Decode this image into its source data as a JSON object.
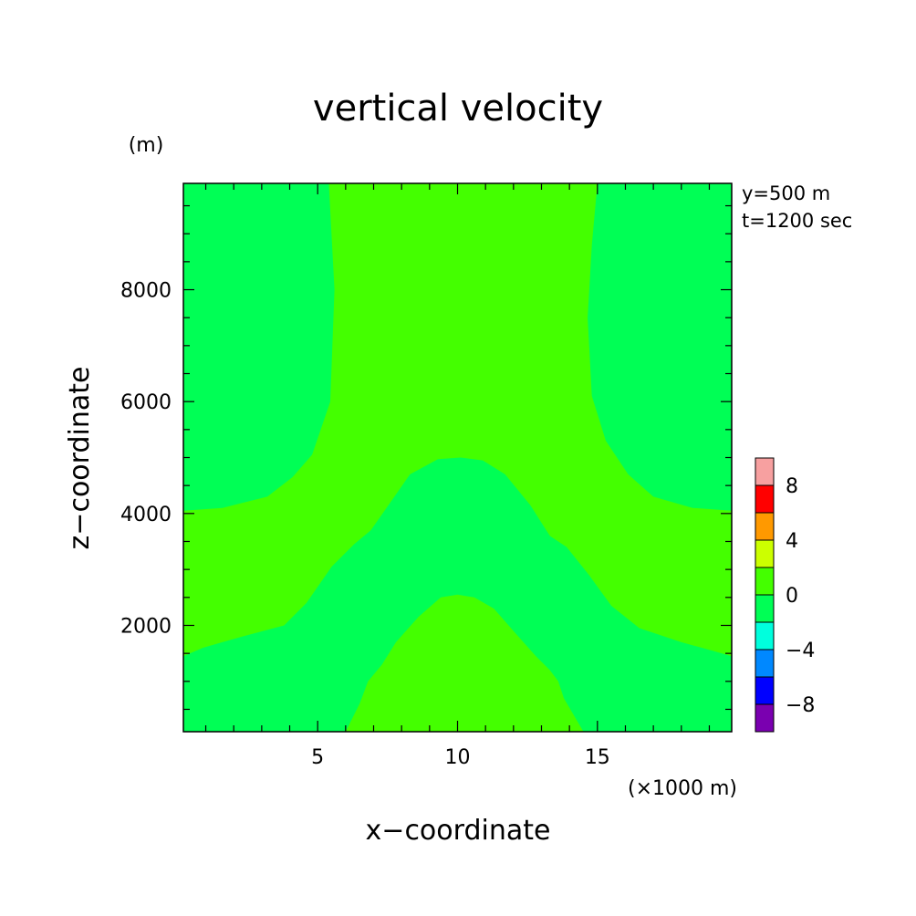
{
  "chart_data": {
    "type": "heatmap",
    "title": "vertical velocity",
    "xlabel": "x−coordinate",
    "ylabel": "z−coordinate",
    "x_unit": "(×1000 m)",
    "y_unit": "(m)",
    "annotations": [
      "y=500 m",
      "t=1200 sec"
    ],
    "xlim": [
      0.2,
      19.8
    ],
    "ylim": [
      100,
      9900
    ],
    "x_ticks": [
      5,
      10,
      15
    ],
    "y_ticks": [
      2000,
      4000,
      6000,
      8000
    ],
    "colorbar": {
      "tick_labels": [
        "8",
        "4",
        "0",
        "−4",
        "−8"
      ],
      "tick_values": [
        8,
        4,
        0,
        -4,
        -8
      ],
      "levels": [
        10,
        8,
        6,
        4,
        2,
        0,
        -2,
        -4,
        -6,
        -8,
        -10
      ],
      "colors": [
        "#f7a0a0",
        "#ff0000",
        "#ff9900",
        "#ccff00",
        "#44ff00",
        "#00ff55",
        "#00ffdd",
        "#0088ff",
        "#0000ff",
        "#7a00b0"
      ]
    },
    "background_color": "#00ff55",
    "regions": [
      {
        "name": "upward band",
        "value_range": [
          0,
          2
        ],
        "color": "#44ff00",
        "boundary_xz": [
          [
            5.4,
            9900
          ],
          [
            5.6,
            8000
          ],
          [
            5.45,
            6000
          ],
          [
            4.8,
            5050
          ],
          [
            4.1,
            4650
          ],
          [
            3.2,
            4300
          ],
          [
            1.6,
            4100
          ],
          [
            0.2,
            4050
          ],
          [
            0.2,
            1450
          ],
          [
            0.9,
            1600
          ],
          [
            2.3,
            1800
          ],
          [
            3.8,
            2000
          ],
          [
            4.6,
            2400
          ],
          [
            5.5,
            3050
          ],
          [
            6.3,
            3450
          ],
          [
            6.9,
            3700
          ],
          [
            7.6,
            4200
          ],
          [
            8.3,
            4700
          ],
          [
            9.3,
            4970
          ],
          [
            10.1,
            5000
          ],
          [
            10.9,
            4950
          ],
          [
            11.7,
            4700
          ],
          [
            12.6,
            4150
          ],
          [
            13.3,
            3600
          ],
          [
            13.9,
            3400
          ],
          [
            14.7,
            2900
          ],
          [
            15.5,
            2350
          ],
          [
            16.5,
            1950
          ],
          [
            18.0,
            1700
          ],
          [
            19.1,
            1550
          ],
          [
            19.8,
            1450
          ],
          [
            19.8,
            4050
          ],
          [
            18.4,
            4100
          ],
          [
            17.0,
            4300
          ],
          [
            16.1,
            4700
          ],
          [
            15.3,
            5300
          ],
          [
            14.8,
            6100
          ],
          [
            14.65,
            7500
          ],
          [
            14.8,
            8800
          ],
          [
            15.0,
            9900
          ]
        ]
      },
      {
        "name": "lower upward lobe",
        "value_range": [
          0,
          2
        ],
        "color": "#44ff00",
        "boundary_xz": [
          [
            6.0,
            100
          ],
          [
            6.5,
            600
          ],
          [
            6.8,
            1000
          ],
          [
            7.3,
            1300
          ],
          [
            7.8,
            1700
          ],
          [
            8.6,
            2150
          ],
          [
            9.4,
            2500
          ],
          [
            10.0,
            2550
          ],
          [
            10.6,
            2500
          ],
          [
            11.3,
            2300
          ],
          [
            12.0,
            1900
          ],
          [
            12.8,
            1450
          ],
          [
            13.3,
            1200
          ],
          [
            13.6,
            1000
          ],
          [
            13.8,
            700
          ],
          [
            14.5,
            100
          ]
        ]
      }
    ]
  }
}
